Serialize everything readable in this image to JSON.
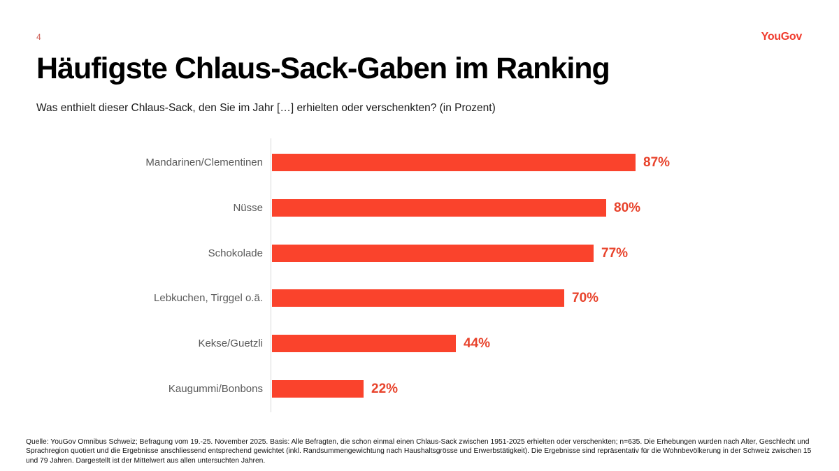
{
  "page": {
    "number": "4",
    "logo_text": "YouGov",
    "title": "Häufigste Chlaus-Sack-Gaben im Ranking",
    "subtitle": "Was enthielt dieser Chlaus-Sack, den Sie im Jahr […] erhielten oder verschenkten? (in Prozent)",
    "footer": "Quelle: YouGov Omnibus Schweiz; Befragung vom 19.-25. November 2025. Basis: Alle Befragten, die schon einmal einen Chlaus-Sack zwischen 1951-2025 erhielten oder verschenkten; n=635. Die Erhebungen wurden nach Alter, Geschlecht und Sprachregion quotiert und die Ergebnisse anschliessend entsprechend gewichtet (inkl. Randsummengewichtung nach Haushaltsgrösse und Erwerbstätigkeit). Die Ergebnisse sind repräsentativ für die Wohnbevölkerung in der Schweiz zwischen 15 und 79 Jahren. Dargestellt ist der Mittelwert aus allen untersuchten Jahren."
  },
  "colors": {
    "bar": "#FA432C",
    "value_label": "#E8432C",
    "logo": "#F03C2E",
    "page_number": "#CC5A52",
    "category_label": "#595959",
    "axis_line": "#D9D9D9"
  },
  "chart_data": {
    "type": "bar",
    "orientation": "horizontal",
    "title": "Häufigste Chlaus-Sack-Gaben im Ranking",
    "subtitle": "Was enthielt dieser Chlaus-Sack, den Sie im Jahr […] erhielten oder verschenkten? (in Prozent)",
    "categories": [
      "Mandarinen/Clementinen",
      "Nüsse",
      "Schokolade",
      "Lebkuchen, Tirggel o.ä.",
      "Kekse/Guetzli",
      "Kaugummi/Bonbons"
    ],
    "values": [
      87,
      80,
      77,
      70,
      44,
      22
    ],
    "value_labels": [
      "87%",
      "80%",
      "77%",
      "70%",
      "44%",
      "22%"
    ],
    "unit": "percent",
    "xlabel": "",
    "ylabel": "",
    "xlim": [
      0,
      100
    ],
    "grid": false,
    "legend": false,
    "data_labels": "end-of-bar"
  }
}
